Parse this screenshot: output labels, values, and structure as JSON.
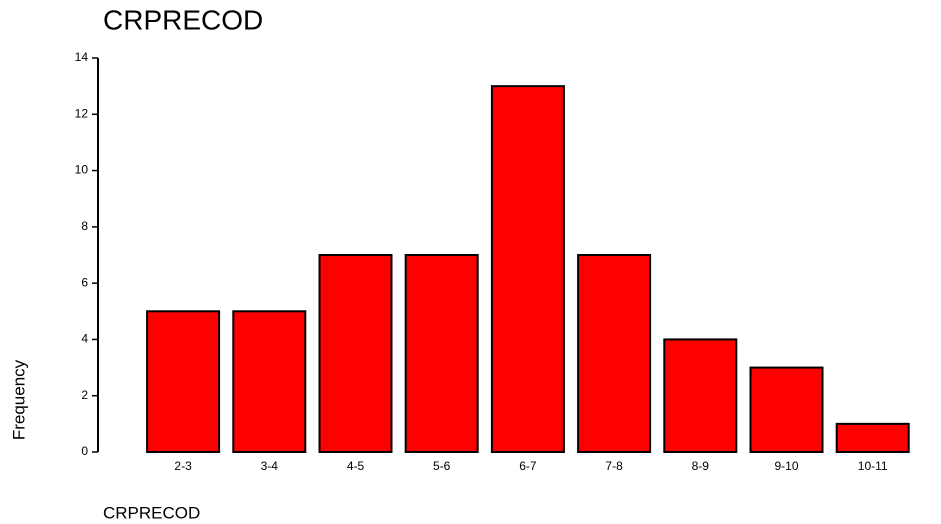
{
  "chart_data": {
    "type": "bar",
    "title": "CRPRECOD",
    "x_label": "CRPRECOD",
    "y_label": "Frequency",
    "categories": [
      "2-3",
      "3-4",
      "4-5",
      "5-6",
      "6-7",
      "7-8",
      "8-9",
      "9-10",
      "10-11"
    ],
    "values": [
      5,
      5,
      7,
      7,
      13,
      7,
      4,
      3,
      1
    ],
    "color": "#ff0000",
    "ylim": [
      0,
      14
    ],
    "yticks": [
      0,
      2,
      4,
      6,
      8,
      10,
      12,
      14
    ],
    "grid": false
  }
}
